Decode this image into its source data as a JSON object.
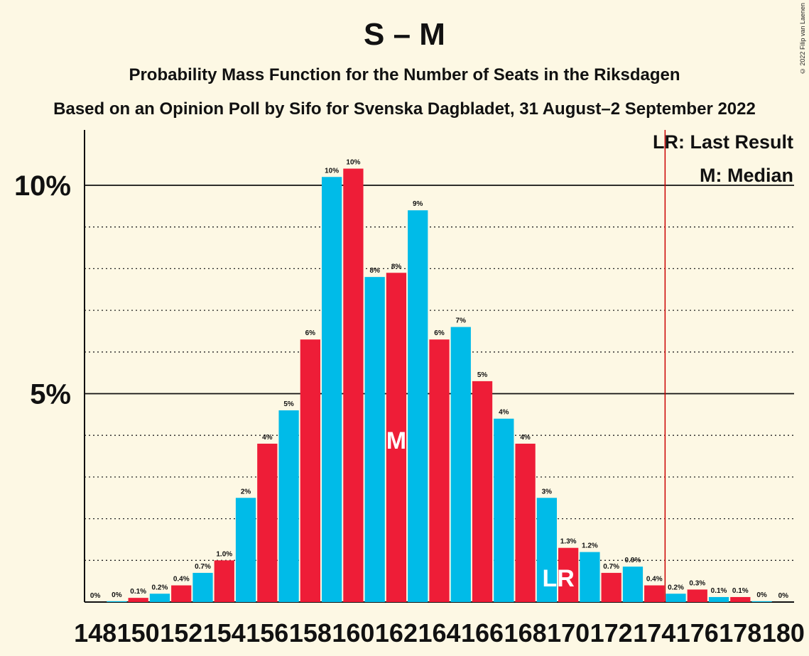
{
  "title": "S – M",
  "subtitle": "Probability Mass Function for the Number of Seats in the Riksdagen",
  "subtitle2": "Based on an Opinion Poll by Sifo for Svenska Dagbladet, 31 August–2 September 2022",
  "copyright": "© 2022 Filip van Laenen",
  "legend": {
    "last_result": "LR: Last Result",
    "median": "M: Median"
  },
  "colors": {
    "background": "#fdf8e4",
    "cyan": "#00bbe8",
    "red": "#ee1d37",
    "lr_line": "#cc0000"
  },
  "chart_data": {
    "type": "bar",
    "x": [
      148,
      149,
      150,
      151,
      152,
      153,
      154,
      155,
      156,
      157,
      158,
      159,
      160,
      161,
      162,
      163,
      164,
      165,
      166,
      167,
      168,
      169,
      170,
      171,
      172,
      173,
      174,
      175,
      176,
      177,
      178,
      179,
      180
    ],
    "values": [
      0.0,
      0.02,
      0.1,
      0.2,
      0.4,
      0.7,
      1.0,
      2.5,
      3.8,
      4.6,
      6.3,
      10.2,
      10.4,
      7.8,
      7.9,
      9.4,
      6.3,
      6.6,
      5.3,
      4.4,
      3.8,
      2.5,
      1.3,
      1.2,
      0.7,
      0.85,
      0.4,
      0.2,
      0.3,
      0.12,
      0.12,
      0.02,
      0.0
    ],
    "labels": [
      "0%",
      "0%",
      "0.1%",
      "0.2%",
      "0.4%",
      "0.7%",
      "1.0%",
      "2%",
      "4%",
      "5%",
      "6%",
      "10%",
      "10%",
      "8%",
      "8%",
      "9%",
      "6%",
      "7%",
      "5%",
      "4%",
      "4%",
      "3%",
      "1.3%",
      "1.2%",
      "0.7%",
      "0.9%",
      "0.4%",
      "0.2%",
      "0.3%",
      "0.1%",
      "0.1%",
      "0%",
      "0%"
    ],
    "x_tick_labels": [
      "148",
      "150",
      "152",
      "154",
      "156",
      "158",
      "160",
      "162",
      "164",
      "166",
      "168",
      "170",
      "172",
      "174",
      "176",
      "178",
      "180"
    ],
    "y_tick_labels": [
      "5%",
      "10%"
    ],
    "y_ticks": [
      5,
      10
    ],
    "ylim": [
      0,
      11.3
    ],
    "median": 162,
    "median_marker": "M",
    "last_result": 170,
    "last_result_marker": "LR",
    "lr_line_at": 174.5
  }
}
